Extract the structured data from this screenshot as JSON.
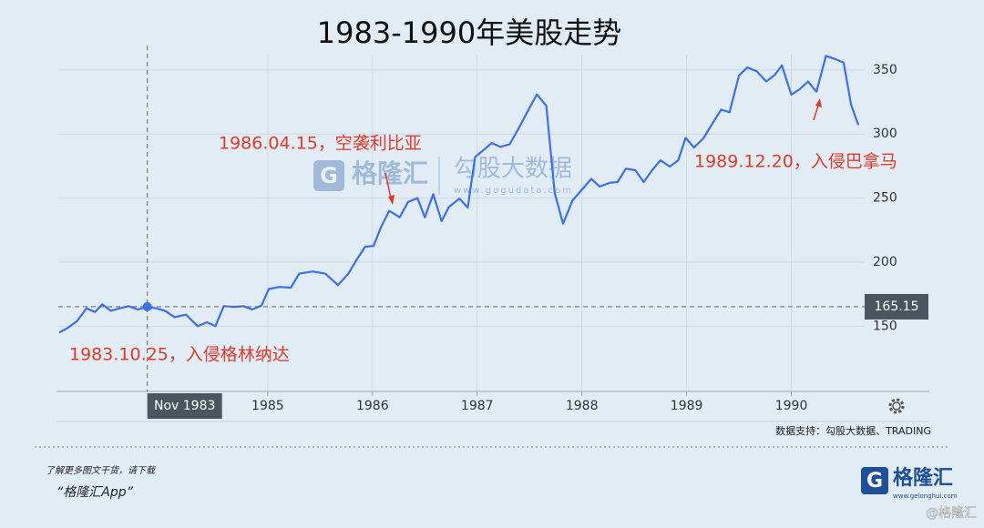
{
  "chart_data": {
    "type": "line",
    "title": "1983-1990年美股走势",
    "color": "#3b6ff5",
    "x": [
      1983.01,
      1983.09,
      1983.18,
      1983.27,
      1983.35,
      1983.42,
      1983.5,
      1983.59,
      1983.67,
      1983.76,
      1983.85,
      1983.93,
      1984.02,
      1984.11,
      1984.22,
      1984.33,
      1984.42,
      1984.5,
      1984.58,
      1984.68,
      1984.77,
      1984.85,
      1984.94,
      1985.01,
      1985.11,
      1985.22,
      1985.3,
      1985.43,
      1985.55,
      1985.67,
      1985.77,
      1985.85,
      1985.93,
      1986.01,
      1986.08,
      1986.16,
      1986.26,
      1986.34,
      1986.43,
      1986.5,
      1986.58,
      1986.66,
      1986.73,
      1986.83,
      1986.91,
      1986.98,
      1987.05,
      1987.14,
      1987.22,
      1987.31,
      1987.4,
      1987.49,
      1987.57,
      1987.66,
      1987.74,
      1987.82,
      1987.91,
      1988.01,
      1988.09,
      1988.17,
      1988.27,
      1988.34,
      1988.42,
      1988.51,
      1988.59,
      1988.67,
      1988.75,
      1988.84,
      1988.92,
      1988.99,
      1989.07,
      1989.16,
      1989.25,
      1989.33,
      1989.41,
      1989.5,
      1989.58,
      1989.67,
      1989.76,
      1989.84,
      1989.91,
      1990.0,
      1990.08,
      1990.16,
      1990.24,
      1990.33,
      1990.42,
      1990.5,
      1990.57,
      1990.64
    ],
    "values": [
      145,
      148.6,
      154,
      164,
      161,
      167,
      162,
      164,
      165.6,
      163,
      165.15,
      164,
      162,
      157,
      159,
      150,
      153,
      150,
      165.6,
      165,
      165.6,
      163,
      166,
      179,
      180.6,
      180,
      191,
      192.7,
      191,
      182,
      191,
      202,
      212,
      212.6,
      227,
      240,
      235,
      247,
      250,
      235,
      253,
      232,
      243,
      249.6,
      242.5,
      282,
      286.7,
      293,
      290,
      292,
      305,
      319,
      331,
      322,
      254,
      230,
      248,
      257.5,
      265,
      259,
      262,
      262.5,
      273,
      271.7,
      262.5,
      271.7,
      279.5,
      274.6,
      279.5,
      297,
      289.5,
      296.6,
      308.7,
      319,
      317,
      345.7,
      352,
      349,
      341,
      346,
      353.6,
      330.8,
      335,
      341,
      333,
      361,
      358.5,
      355.7,
      323,
      307
    ],
    "xlim": [
      1983,
      1990.7
    ],
    "xticks": [
      1985,
      1986,
      1987,
      1988,
      1989,
      1990
    ],
    "ylim": [
      99,
      362
    ],
    "yticks": [
      150,
      200,
      250,
      300,
      350
    ],
    "grid": true,
    "crosshair": {
      "x": 1983.85,
      "x_label": "Nov 1983",
      "y": 165.15
    },
    "annotations": [
      "1986.04.15，空袭利比亚",
      "1989.12.20，入侵巴拿马",
      "1983.10.25，入侵格林纳达"
    ],
    "source": "数据支持：勾股大数据、TRADING"
  },
  "watermark": {
    "brand": "格隆汇",
    "name": "勾股大数据",
    "url": "www.gogudata.com"
  },
  "footer": {
    "line1": "了解更多图文干货，请下载",
    "line2": "“格隆汇App”",
    "logo": "格隆汇",
    "logo_url": "www.gelonghui.com",
    "corner": "@格隆汇"
  }
}
